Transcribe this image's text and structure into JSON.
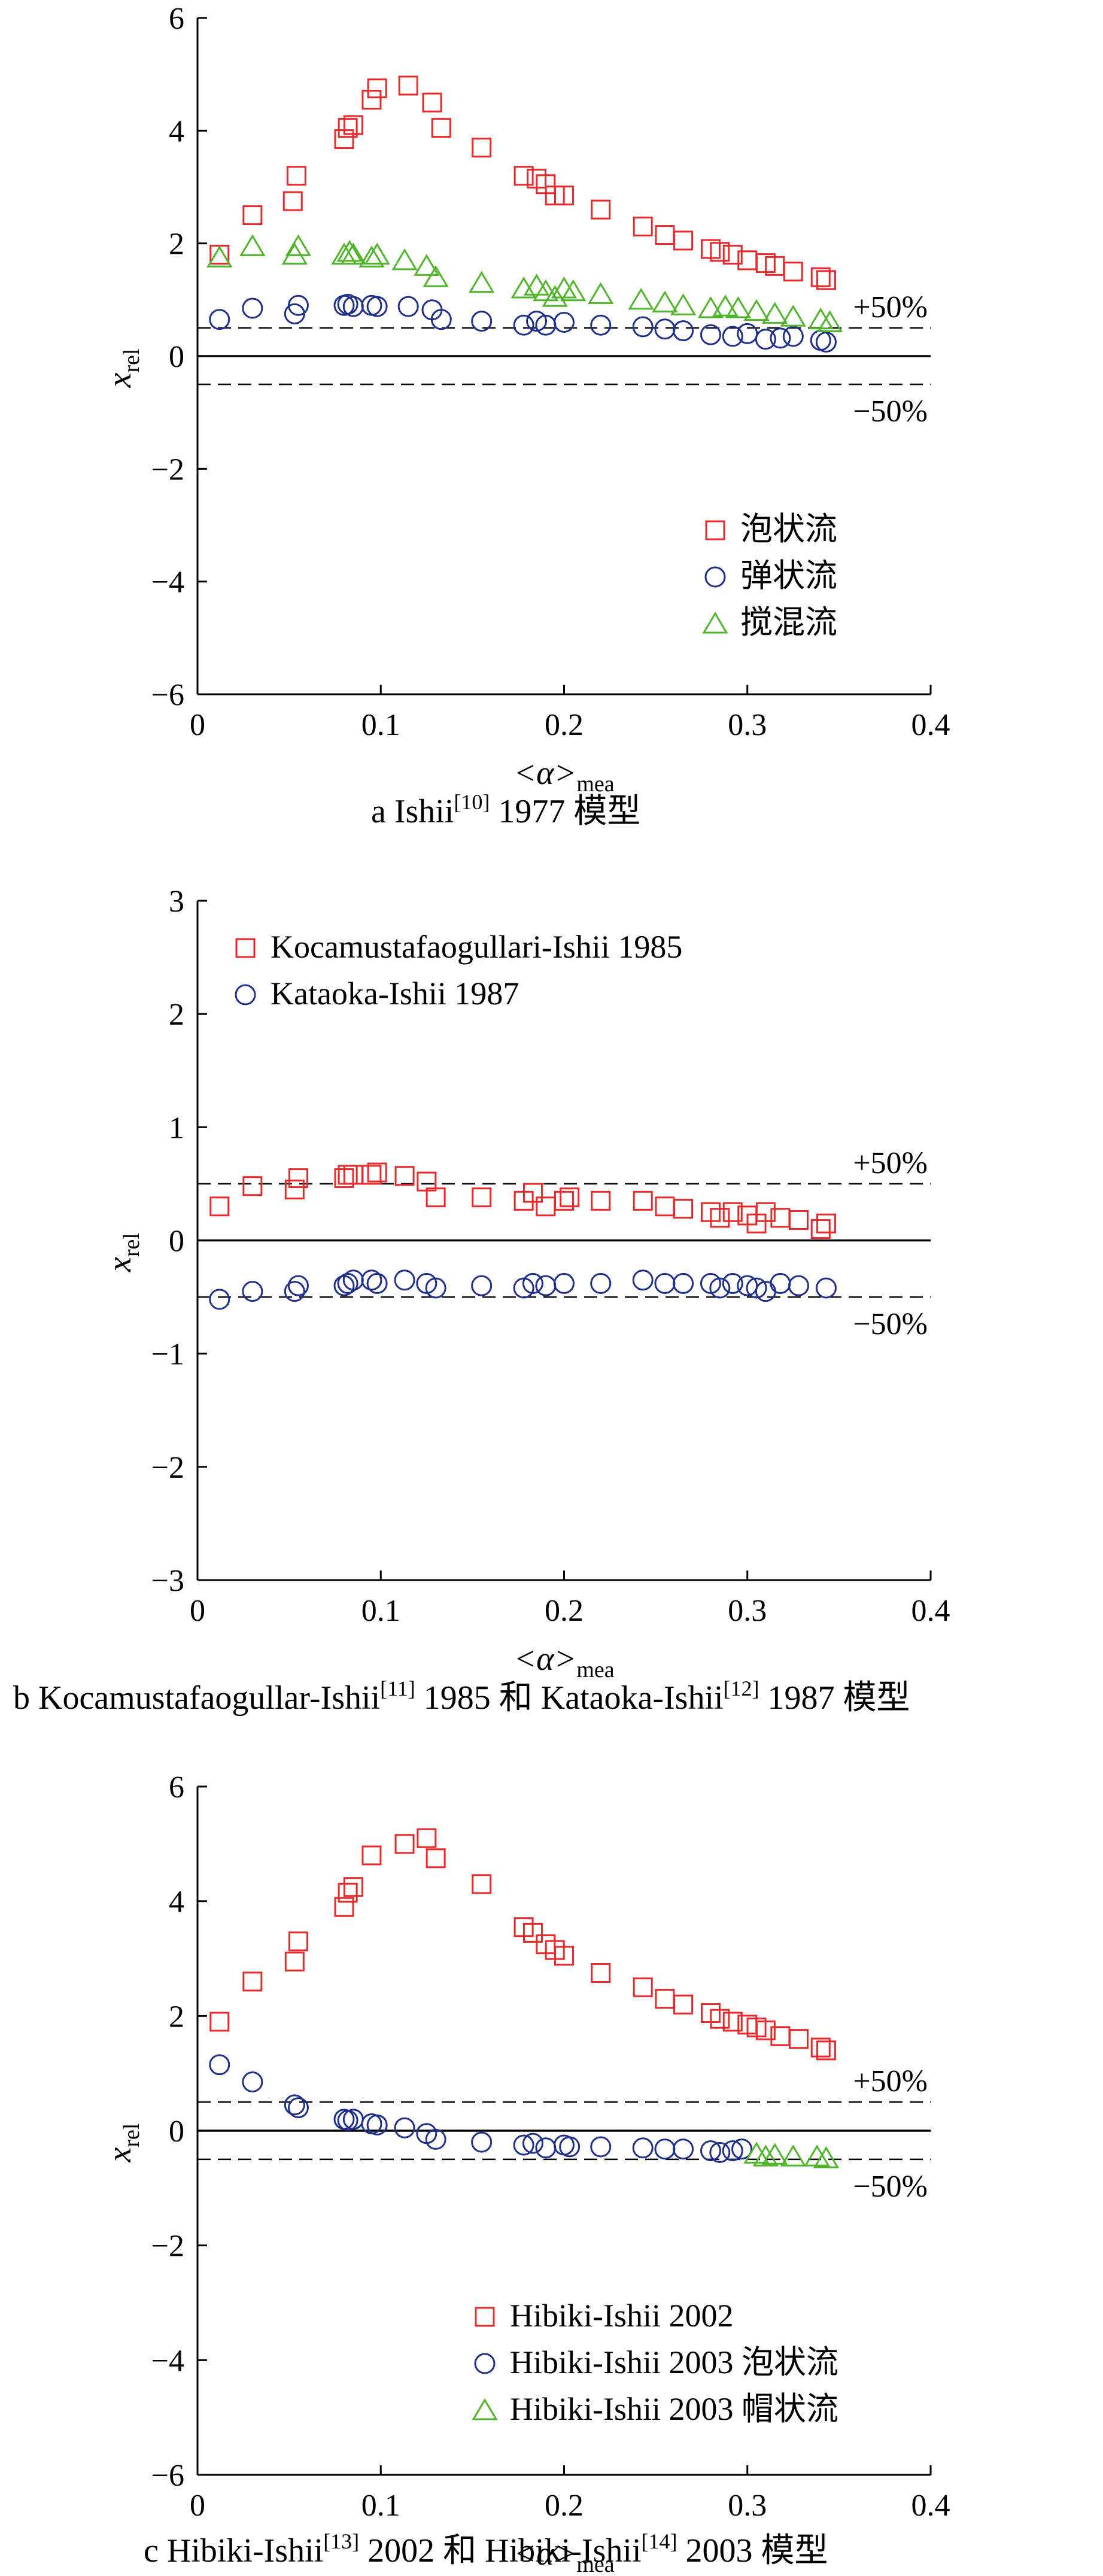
{
  "chart_data": [
    {
      "type": "scatter",
      "caption": {
        "letter": "a",
        "prefix": "Ishii",
        "ref": "[10]",
        "suffix": " 1977 模型"
      },
      "xlabel": {
        "main": "<α>",
        "sub": "mea"
      },
      "ylabel": {
        "main": "x",
        "sub": "rel"
      },
      "xlim": [
        0,
        0.4
      ],
      "ylim": [
        -6,
        6
      ],
      "xticks": [
        "0",
        "0.1",
        "0.2",
        "0.3",
        "0.4"
      ],
      "yticks": [
        "−6",
        "−4",
        "−2",
        "0",
        "2",
        "4",
        "6"
      ],
      "ytick_values": [
        -6,
        -4,
        -2,
        0,
        2,
        4,
        6
      ],
      "reference_lines": [
        {
          "y": 0.5,
          "style": "dashed",
          "label": "+50%"
        },
        {
          "y": 0,
          "style": "solid"
        },
        {
          "y": -0.5,
          "style": "dashed",
          "label": "−50%"
        }
      ],
      "legend": "lower-right",
      "series": [
        {
          "name": "泡状流",
          "marker": "square",
          "color": "#e8282b",
          "points": [
            [
              0.012,
              1.8
            ],
            [
              0.03,
              2.5
            ],
            [
              0.052,
              2.75
            ],
            [
              0.054,
              3.2
            ],
            [
              0.08,
              3.85
            ],
            [
              0.082,
              4.05
            ],
            [
              0.085,
              4.1
            ],
            [
              0.095,
              4.55
            ],
            [
              0.098,
              4.75
            ],
            [
              0.115,
              4.8
            ],
            [
              0.128,
              4.5
            ],
            [
              0.133,
              4.05
            ],
            [
              0.155,
              3.7
            ],
            [
              0.178,
              3.2
            ],
            [
              0.185,
              3.15
            ],
            [
              0.19,
              3.05
            ],
            [
              0.195,
              2.85
            ],
            [
              0.2,
              2.85
            ],
            [
              0.22,
              2.6
            ],
            [
              0.243,
              2.3
            ],
            [
              0.255,
              2.15
            ],
            [
              0.265,
              2.05
            ],
            [
              0.28,
              1.9
            ],
            [
              0.285,
              1.85
            ],
            [
              0.292,
              1.8
            ],
            [
              0.3,
              1.7
            ],
            [
              0.31,
              1.65
            ],
            [
              0.315,
              1.6
            ],
            [
              0.325,
              1.5
            ],
            [
              0.34,
              1.4
            ],
            [
              0.343,
              1.35
            ]
          ]
        },
        {
          "name": "弹状流",
          "marker": "circle",
          "color": "#1f2f8c",
          "points": [
            [
              0.012,
              0.65
            ],
            [
              0.03,
              0.85
            ],
            [
              0.053,
              0.75
            ],
            [
              0.055,
              0.9
            ],
            [
              0.08,
              0.9
            ],
            [
              0.082,
              0.92
            ],
            [
              0.085,
              0.88
            ],
            [
              0.095,
              0.9
            ],
            [
              0.098,
              0.88
            ],
            [
              0.115,
              0.88
            ],
            [
              0.128,
              0.82
            ],
            [
              0.133,
              0.65
            ],
            [
              0.155,
              0.62
            ],
            [
              0.178,
              0.55
            ],
            [
              0.185,
              0.62
            ],
            [
              0.19,
              0.55
            ],
            [
              0.2,
              0.6
            ],
            [
              0.22,
              0.55
            ],
            [
              0.243,
              0.52
            ],
            [
              0.255,
              0.48
            ],
            [
              0.265,
              0.45
            ],
            [
              0.28,
              0.38
            ],
            [
              0.292,
              0.35
            ],
            [
              0.3,
              0.4
            ],
            [
              0.31,
              0.3
            ],
            [
              0.318,
              0.32
            ],
            [
              0.325,
              0.35
            ],
            [
              0.34,
              0.28
            ],
            [
              0.343,
              0.25
            ]
          ]
        },
        {
          "name": "搅混流",
          "marker": "triangle",
          "color": "#4fb52b",
          "points": [
            [
              0.012,
              1.75
            ],
            [
              0.03,
              1.95
            ],
            [
              0.053,
              1.8
            ],
            [
              0.055,
              1.95
            ],
            [
              0.08,
              1.8
            ],
            [
              0.083,
              1.85
            ],
            [
              0.085,
              1.8
            ],
            [
              0.095,
              1.75
            ],
            [
              0.098,
              1.8
            ],
            [
              0.113,
              1.7
            ],
            [
              0.125,
              1.6
            ],
            [
              0.13,
              1.4
            ],
            [
              0.155,
              1.3
            ],
            [
              0.178,
              1.2
            ],
            [
              0.185,
              1.25
            ],
            [
              0.19,
              1.15
            ],
            [
              0.195,
              1.05
            ],
            [
              0.2,
              1.2
            ],
            [
              0.205,
              1.15
            ],
            [
              0.22,
              1.1
            ],
            [
              0.242,
              1.0
            ],
            [
              0.255,
              0.95
            ],
            [
              0.265,
              0.9
            ],
            [
              0.28,
              0.85
            ],
            [
              0.288,
              0.88
            ],
            [
              0.295,
              0.85
            ],
            [
              0.305,
              0.8
            ],
            [
              0.315,
              0.75
            ],
            [
              0.325,
              0.7
            ],
            [
              0.34,
              0.65
            ],
            [
              0.345,
              0.6
            ]
          ]
        }
      ]
    },
    {
      "type": "scatter",
      "caption": {
        "letter": "b",
        "prefix": "Kocamustafaogullar-Ishii",
        "ref": "[11]",
        "suffix": " 1985 和 Kataoka-Ishii",
        "ref2": "[12]",
        "suffix2": " 1987 模型"
      },
      "xlabel": {
        "main": "<α>",
        "sub": "mea"
      },
      "ylabel": {
        "main": "x",
        "sub": "rel"
      },
      "xlim": [
        0,
        0.4
      ],
      "ylim": [
        -3,
        3
      ],
      "xticks": [
        "0",
        "0.1",
        "0.2",
        "0.3",
        "0.4"
      ],
      "yticks": [
        "−3",
        "−2",
        "−1",
        "0",
        "1",
        "2",
        "3"
      ],
      "ytick_values": [
        -3,
        -2,
        -1,
        0,
        1,
        2,
        3
      ],
      "reference_lines": [
        {
          "y": 0.5,
          "style": "dashed",
          "label": "+50%"
        },
        {
          "y": 0,
          "style": "solid"
        },
        {
          "y": -0.5,
          "style": "dashed",
          "label": "−50%"
        }
      ],
      "legend": "top-left",
      "series": [
        {
          "name": "Kocamustafaogullari-Ishii 1985",
          "marker": "square",
          "color": "#e8282b",
          "points": [
            [
              0.012,
              0.3
            ],
            [
              0.03,
              0.48
            ],
            [
              0.053,
              0.45
            ],
            [
              0.055,
              0.55
            ],
            [
              0.08,
              0.55
            ],
            [
              0.082,
              0.58
            ],
            [
              0.085,
              0.58
            ],
            [
              0.095,
              0.58
            ],
            [
              0.098,
              0.6
            ],
            [
              0.113,
              0.57
            ],
            [
              0.125,
              0.52
            ],
            [
              0.13,
              0.38
            ],
            [
              0.155,
              0.38
            ],
            [
              0.178,
              0.35
            ],
            [
              0.183,
              0.42
            ],
            [
              0.19,
              0.3
            ],
            [
              0.2,
              0.35
            ],
            [
              0.203,
              0.38
            ],
            [
              0.22,
              0.35
            ],
            [
              0.243,
              0.35
            ],
            [
              0.255,
              0.3
            ],
            [
              0.265,
              0.28
            ],
            [
              0.28,
              0.25
            ],
            [
              0.285,
              0.2
            ],
            [
              0.292,
              0.25
            ],
            [
              0.3,
              0.22
            ],
            [
              0.305,
              0.15
            ],
            [
              0.31,
              0.25
            ],
            [
              0.318,
              0.2
            ],
            [
              0.328,
              0.18
            ],
            [
              0.34,
              0.1
            ],
            [
              0.343,
              0.15
            ]
          ]
        },
        {
          "name": "Kataoka-Ishii 1987",
          "marker": "circle",
          "color": "#1f2f8c",
          "points": [
            [
              0.012,
              -0.52
            ],
            [
              0.03,
              -0.45
            ],
            [
              0.053,
              -0.45
            ],
            [
              0.055,
              -0.4
            ],
            [
              0.08,
              -0.4
            ],
            [
              0.082,
              -0.38
            ],
            [
              0.085,
              -0.35
            ],
            [
              0.095,
              -0.35
            ],
            [
              0.098,
              -0.38
            ],
            [
              0.113,
              -0.35
            ],
            [
              0.125,
              -0.38
            ],
            [
              0.13,
              -0.42
            ],
            [
              0.155,
              -0.4
            ],
            [
              0.178,
              -0.42
            ],
            [
              0.183,
              -0.38
            ],
            [
              0.19,
              -0.4
            ],
            [
              0.2,
              -0.38
            ],
            [
              0.22,
              -0.38
            ],
            [
              0.243,
              -0.35
            ],
            [
              0.255,
              -0.38
            ],
            [
              0.265,
              -0.38
            ],
            [
              0.28,
              -0.38
            ],
            [
              0.285,
              -0.42
            ],
            [
              0.292,
              -0.38
            ],
            [
              0.3,
              -0.4
            ],
            [
              0.305,
              -0.42
            ],
            [
              0.31,
              -0.45
            ],
            [
              0.318,
              -0.38
            ],
            [
              0.328,
              -0.4
            ],
            [
              0.343,
              -0.42
            ]
          ]
        }
      ]
    },
    {
      "type": "scatter",
      "caption": {
        "letter": "c",
        "prefix": "Hibiki-Ishii",
        "ref": "[13]",
        "suffix": " 2002 和 Hibiki-Ishii",
        "ref2": "[14]",
        "suffix2": " 2003 模型"
      },
      "xlabel": {
        "main": "<α>",
        "sub": "mea"
      },
      "ylabel": {
        "main": "x",
        "sub": "rel"
      },
      "xlim": [
        0,
        0.4
      ],
      "ylim": [
        -6,
        6
      ],
      "xticks": [
        "0",
        "0.1",
        "0.2",
        "0.3",
        "0.4"
      ],
      "yticks": [
        "−6",
        "−4",
        "−2",
        "0",
        "2",
        "4",
        "6"
      ],
      "ytick_values": [
        -6,
        -4,
        -2,
        0,
        2,
        4,
        6
      ],
      "reference_lines": [
        {
          "y": 0.5,
          "style": "dashed",
          "label": "+50%"
        },
        {
          "y": 0,
          "style": "solid"
        },
        {
          "y": -0.5,
          "style": "dashed",
          "label": "−50%"
        }
      ],
      "legend": "lower-right",
      "series": [
        {
          "name": "Hibiki-Ishii 2002",
          "marker": "square",
          "color": "#e8282b",
          "points": [
            [
              0.012,
              1.9
            ],
            [
              0.03,
              2.6
            ],
            [
              0.053,
              2.95
            ],
            [
              0.055,
              3.3
            ],
            [
              0.08,
              3.9
            ],
            [
              0.082,
              4.15
            ],
            [
              0.085,
              4.25
            ],
            [
              0.095,
              4.8
            ],
            [
              0.113,
              5.0
            ],
            [
              0.125,
              5.1
            ],
            [
              0.13,
              4.75
            ],
            [
              0.155,
              4.3
            ],
            [
              0.178,
              3.55
            ],
            [
              0.183,
              3.45
            ],
            [
              0.19,
              3.25
            ],
            [
              0.195,
              3.15
            ],
            [
              0.2,
              3.05
            ],
            [
              0.22,
              2.75
            ],
            [
              0.243,
              2.5
            ],
            [
              0.255,
              2.3
            ],
            [
              0.265,
              2.2
            ],
            [
              0.28,
              2.05
            ],
            [
              0.285,
              1.95
            ],
            [
              0.292,
              1.9
            ],
            [
              0.3,
              1.85
            ],
            [
              0.305,
              1.8
            ],
            [
              0.31,
              1.75
            ],
            [
              0.318,
              1.65
            ],
            [
              0.328,
              1.6
            ],
            [
              0.34,
              1.45
            ],
            [
              0.343,
              1.4
            ]
          ]
        },
        {
          "name": "Hibiki-Ishii 2003 泡状流",
          "marker": "circle",
          "color": "#1f2f8c",
          "points": [
            [
              0.012,
              1.15
            ],
            [
              0.03,
              0.85
            ],
            [
              0.053,
              0.45
            ],
            [
              0.055,
              0.4
            ],
            [
              0.08,
              0.2
            ],
            [
              0.082,
              0.18
            ],
            [
              0.085,
              0.2
            ],
            [
              0.095,
              0.12
            ],
            [
              0.098,
              0.1
            ],
            [
              0.113,
              0.05
            ],
            [
              0.125,
              -0.05
            ],
            [
              0.13,
              -0.15
            ],
            [
              0.155,
              -0.2
            ],
            [
              0.178,
              -0.25
            ],
            [
              0.183,
              -0.22
            ],
            [
              0.19,
              -0.3
            ],
            [
              0.2,
              -0.25
            ],
            [
              0.203,
              -0.28
            ],
            [
              0.22,
              -0.28
            ],
            [
              0.243,
              -0.3
            ],
            [
              0.255,
              -0.32
            ],
            [
              0.265,
              -0.32
            ],
            [
              0.28,
              -0.35
            ],
            [
              0.285,
              -0.38
            ],
            [
              0.292,
              -0.35
            ],
            [
              0.297,
              -0.32
            ]
          ]
        },
        {
          "name": "Hibiki-Ishii 2003 帽状流",
          "marker": "triangle",
          "color": "#4fb52b",
          "points": [
            [
              0.305,
              -0.4
            ],
            [
              0.31,
              -0.45
            ],
            [
              0.315,
              -0.42
            ],
            [
              0.325,
              -0.45
            ],
            [
              0.338,
              -0.45
            ],
            [
              0.343,
              -0.48
            ]
          ]
        }
      ]
    }
  ]
}
